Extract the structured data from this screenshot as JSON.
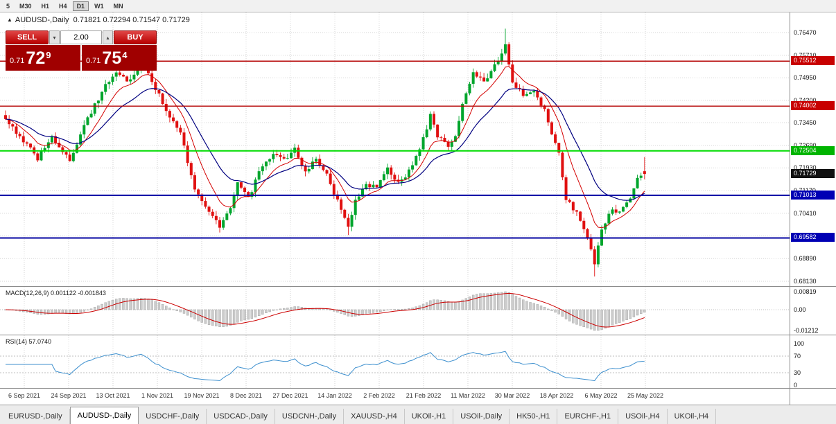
{
  "toolbar": {
    "timeframes": [
      "5",
      "M30",
      "H1",
      "H4",
      "D1",
      "W1",
      "MN"
    ],
    "active": "D1"
  },
  "header": {
    "icon": "▲",
    "symbol": "AUDUSD-,Daily",
    "ohlc": "0.71821 0.72294 0.71547 0.71729"
  },
  "trade_panel": {
    "sell_label": "SELL",
    "buy_label": "BUY",
    "volume": "2.00",
    "vol_down_icon": "▾",
    "vol_up_icon": "▴",
    "sell_price": {
      "prefix": "0.71",
      "big": "72",
      "sup": "9"
    },
    "buy_price": {
      "prefix": "0.71",
      "big": "75",
      "sup": "4"
    }
  },
  "price_scale": {
    "labels": [
      {
        "t": "0.76470",
        "p": 0.7647
      },
      {
        "t": "0.75710",
        "p": 0.7571
      },
      {
        "t": "0.74950",
        "p": 0.7495
      },
      {
        "t": "0.74200",
        "p": 0.742
      },
      {
        "t": "0.73450",
        "p": 0.7345
      },
      {
        "t": "0.72690",
        "p": 0.7269
      },
      {
        "t": "0.71930",
        "p": 0.7193
      },
      {
        "t": "0.71170",
        "p": 0.7117
      },
      {
        "t": "0.70410",
        "p": 0.7041
      },
      {
        "t": "0.69650",
        "p": 0.6965
      },
      {
        "t": "0.68890",
        "p": 0.6889
      },
      {
        "t": "0.68130",
        "p": 0.6813
      }
    ],
    "tags": [
      {
        "t": "0.75512",
        "p": 0.75512,
        "bg": "#c80000"
      },
      {
        "t": "0.74002",
        "p": 0.74002,
        "bg": "#c80000"
      },
      {
        "t": "0.72504",
        "p": 0.72504,
        "bg": "#00b400"
      },
      {
        "t": "0.71729",
        "p": 0.71729,
        "bg": "#111111"
      },
      {
        "t": "0.71013",
        "p": 0.71013,
        "bg": "#0000b4"
      },
      {
        "t": "0.69582",
        "p": 0.69582,
        "bg": "#0000b4"
      }
    ]
  },
  "macd": {
    "label": "MACD(12,26,9) 0.001122 -0.001843",
    "scale": [
      "0.00819",
      "0.00",
      "-0.01212"
    ]
  },
  "rsi": {
    "label": "RSI(14) 57.0740",
    "scale": [
      "100",
      "70",
      "30",
      "0"
    ]
  },
  "date_axis": [
    "6 Sep 2021",
    "24 Sep 2021",
    "13 Oct 2021",
    "1 Nov 2021",
    "19 Nov 2021",
    "8 Dec 2021",
    "27 Dec 2021",
    "14 Jan 2022",
    "2 Feb 2022",
    "21 Feb 2022",
    "11 Mar 2022",
    "30 Mar 2022",
    "18 Apr 2022",
    "6 May 2022",
    "25 May 2022"
  ],
  "tabs": {
    "items": [
      "EURUSD-,Daily",
      "AUDUSD-,Daily",
      "USDCHF-,Daily",
      "USDCAD-,Daily",
      "USDCNH-,Daily",
      "XAUUSD-,H4",
      "UKOil-,H1",
      "USOil-,Daily",
      "HK50-,H1",
      "EURCHF-,H1",
      "USOil-,H4",
      "UKOil-,H4"
    ],
    "active": "AUDUSD-,Daily"
  },
  "chart_data": {
    "type": "candlestick",
    "symbol": "AUDUSD-",
    "timeframe": "Daily",
    "title": "AUDUSD-,Daily",
    "last_ohlc": {
      "o": 0.71821,
      "h": 0.72294,
      "l": 0.71547,
      "c": 0.71729
    },
    "y_axis": {
      "min": 0.6813,
      "max": 0.7647,
      "gridlines": [
        0.7647,
        0.7571,
        0.7495,
        0.742,
        0.7345,
        0.7269,
        0.7193,
        0.7117,
        0.7041,
        0.6965,
        0.6889,
        0.6813
      ]
    },
    "levels": [
      {
        "price": 0.75512,
        "color": "#b40000",
        "width": 1.4
      },
      {
        "price": 0.74002,
        "color": "#b40000",
        "width": 1.4
      },
      {
        "price": 0.72504,
        "color": "#00dc00",
        "width": 2
      },
      {
        "price": 0.71013,
        "color": "#0000a0",
        "width": 2
      },
      {
        "price": 0.69582,
        "color": "#0000a0",
        "width": 2
      }
    ],
    "colors": {
      "up": "#00a52c",
      "down": "#e01010",
      "ma_fast": "#d40000",
      "ma_slow": "#000080",
      "rsi": "#3c8fce",
      "macd_hist": "#cccccc",
      "macd_signal": "#cc0000"
    },
    "moving_averages": [
      {
        "period": 9,
        "color_key": "ma_fast"
      },
      {
        "period": 21,
        "color_key": "ma_slow"
      }
    ],
    "candle_count": 180,
    "price_path": [
      [
        0,
        0.7355
      ],
      [
        4,
        0.73
      ],
      [
        9,
        0.7225
      ],
      [
        13,
        0.73
      ],
      [
        18,
        0.7215
      ],
      [
        23,
        0.736
      ],
      [
        28,
        0.747
      ],
      [
        31,
        0.752
      ],
      [
        34,
        0.748
      ],
      [
        38,
        0.7545
      ],
      [
        42,
        0.746
      ],
      [
        46,
        0.736
      ],
      [
        49,
        0.731
      ],
      [
        53,
        0.712
      ],
      [
        57,
        0.704
      ],
      [
        60,
        0.6995
      ],
      [
        63,
        0.706
      ],
      [
        65,
        0.715
      ],
      [
        68,
        0.709
      ],
      [
        71,
        0.718
      ],
      [
        75,
        0.7245
      ],
      [
        78,
        0.722
      ],
      [
        81,
        0.7255
      ],
      [
        84,
        0.718
      ],
      [
        87,
        0.7225
      ],
      [
        90,
        0.717
      ],
      [
        93,
        0.708
      ],
      [
        96,
        0.699
      ],
      [
        98,
        0.708
      ],
      [
        101,
        0.714
      ],
      [
        104,
        0.7125
      ],
      [
        107,
        0.719
      ],
      [
        110,
        0.714
      ],
      [
        113,
        0.718
      ],
      [
        116,
        0.725
      ],
      [
        119,
        0.737
      ],
      [
        121,
        0.73
      ],
      [
        124,
        0.726
      ],
      [
        126,
        0.73
      ],
      [
        129,
        0.745
      ],
      [
        131,
        0.751
      ],
      [
        134,
        0.748
      ],
      [
        137,
        0.754
      ],
      [
        140,
        0.76
      ],
      [
        142,
        0.748
      ],
      [
        145,
        0.744
      ],
      [
        148,
        0.7445
      ],
      [
        151,
        0.739
      ],
      [
        153,
        0.73
      ],
      [
        155,
        0.7245
      ],
      [
        157,
        0.709
      ],
      [
        160,
        0.704
      ],
      [
        163,
        0.696
      ],
      [
        165,
        0.687
      ],
      [
        167,
        0.699
      ],
      [
        170,
        0.706
      ],
      [
        172,
        0.704
      ],
      [
        175,
        0.709
      ],
      [
        177,
        0.716
      ],
      [
        179,
        0.71729
      ]
    ],
    "spikes": [
      {
        "i": 140,
        "h": 0.766
      },
      {
        "i": 38,
        "h": 0.7556
      },
      {
        "i": 165,
        "l": 0.6829
      },
      {
        "i": 96,
        "l": 0.6968
      },
      {
        "i": 60,
        "l": 0.6993
      }
    ],
    "indicators": {
      "macd": {
        "label": "MACD(12,26,9)",
        "displayed_values": [
          0.001122,
          -0.001843
        ],
        "scale_max": 0.00819,
        "scale_min": -0.01212
      },
      "rsi": {
        "label": "RSI(14)",
        "value": 57.074,
        "levels": [
          70,
          30
        ],
        "range": [
          0,
          100
        ]
      }
    }
  }
}
